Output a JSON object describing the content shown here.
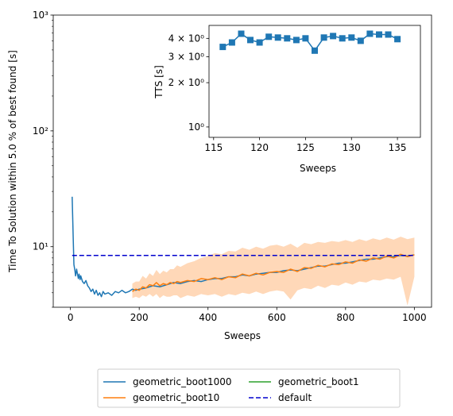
{
  "chart_data": [
    {
      "type": "line",
      "xlabel": "Sweeps",
      "ylabel": "Time To Solution within 5.0 % of best found [s]",
      "xlim": [
        -50,
        1050
      ],
      "ylim": [
        3.0,
        1000
      ],
      "yscale": "log",
      "x_ticks": [
        0,
        200,
        400,
        600,
        800,
        1000
      ],
      "x_tick_labels": [
        "0",
        "200",
        "400",
        "600",
        "800",
        "1000"
      ],
      "y_ticks": [
        10,
        100,
        1000
      ],
      "y_tick_labels": [
        "10¹",
        "10²",
        "10³"
      ],
      "grid": false,
      "legend": {
        "placement": "below-center",
        "columns": 2,
        "entries": [
          "geometric_boot1000",
          "geometric_boot10",
          "geometric_boot1",
          "default"
        ]
      },
      "series": [
        {
          "name": "geometric_boot1000",
          "color": "#1f77b4",
          "style": "solid",
          "x": [
            5,
            8,
            10,
            13,
            15,
            18,
            20,
            23,
            25,
            28,
            30,
            35,
            40,
            45,
            50,
            55,
            60,
            65,
            70,
            75,
            80,
            85,
            90,
            95,
            100,
            110,
            120,
            130,
            140,
            150,
            160,
            170,
            180,
            190,
            200,
            220,
            240,
            260,
            280,
            300,
            320,
            340,
            360,
            380,
            400,
            420,
            440,
            460,
            480,
            500,
            520,
            540,
            560,
            580,
            600,
            620,
            640,
            660,
            680,
            700,
            720,
            740,
            760,
            780,
            800,
            820,
            840,
            860,
            880,
            900,
            920,
            940,
            960,
            980,
            1000
          ],
          "y": [
            27,
            12,
            7,
            6.2,
            5.6,
            6.4,
            5.9,
            5.3,
            5.8,
            5.2,
            5.6,
            5.0,
            4.8,
            5.1,
            4.6,
            4.4,
            4.1,
            4.3,
            3.9,
            4.2,
            3.8,
            4.0,
            3.7,
            4.1,
            3.9,
            4.0,
            3.8,
            4.1,
            4.0,
            4.2,
            4.0,
            4.1,
            4.3,
            4.2,
            4.3,
            4.4,
            4.6,
            4.5,
            4.7,
            4.9,
            4.8,
            5.0,
            5.1,
            5.0,
            5.2,
            5.3,
            5.3,
            5.5,
            5.5,
            5.7,
            5.6,
            5.8,
            5.9,
            6.0,
            6.0,
            6.2,
            6.3,
            6.2,
            6.4,
            6.6,
            6.8,
            6.8,
            7.0,
            7.2,
            7.2,
            7.4,
            7.6,
            7.8,
            7.8,
            8.0,
            8.2,
            8.2,
            8.4,
            8.3,
            8.5
          ]
        },
        {
          "name": "geometric_boot10",
          "color": "#ff7f0e",
          "style": "solid",
          "x": [
            180,
            190,
            200,
            210,
            220,
            230,
            240,
            250,
            260,
            270,
            280,
            290,
            300,
            310,
            320,
            340,
            360,
            380,
            400,
            420,
            440,
            460,
            480,
            500,
            520,
            540,
            560,
            580,
            600,
            620,
            640,
            660,
            680,
            700,
            720,
            740,
            760,
            780,
            800,
            820,
            840,
            860,
            880,
            900,
            920,
            940,
            960,
            980,
            1000
          ],
          "y": [
            4.1,
            4.3,
            4.2,
            4.5,
            4.4,
            4.7,
            4.6,
            4.9,
            4.6,
            4.8,
            4.7,
            4.9,
            4.8,
            5.0,
            4.9,
            5.1,
            5.0,
            5.3,
            5.2,
            5.4,
            5.2,
            5.5,
            5.4,
            5.8,
            5.6,
            5.9,
            5.7,
            6.0,
            6.1,
            6.0,
            6.4,
            6.1,
            6.6,
            6.5,
            6.9,
            6.7,
            7.1,
            7.0,
            7.4,
            7.2,
            7.7,
            7.5,
            8.0,
            7.8,
            8.3,
            8.0,
            8.6,
            8.2,
            8.5
          ],
          "band_lower": [
            3.6,
            3.7,
            3.6,
            3.8,
            3.7,
            3.9,
            3.7,
            3.9,
            3.6,
            3.8,
            3.7,
            3.7,
            3.8,
            3.8,
            3.6,
            3.8,
            3.7,
            3.9,
            3.8,
            3.9,
            3.7,
            3.9,
            3.8,
            4.0,
            3.9,
            4.1,
            3.9,
            4.1,
            4.2,
            4.1,
            3.5,
            4.2,
            4.4,
            4.3,
            4.6,
            4.4,
            4.7,
            4.6,
            4.9,
            4.7,
            5.0,
            4.9,
            5.2,
            5.1,
            5.3,
            5.2,
            5.5,
            3.1,
            5.5
          ],
          "band_upper": [
            4.8,
            5.0,
            5.0,
            5.6,
            5.3,
            5.9,
            5.6,
            6.3,
            5.8,
            6.2,
            6.0,
            6.4,
            6.4,
            6.9,
            6.7,
            7.2,
            7.5,
            8.0,
            8.3,
            8.8,
            8.6,
            9.2,
            9.1,
            9.8,
            9.4,
            10.0,
            9.6,
            10.2,
            10.4,
            10.0,
            10.6,
            9.8,
            10.8,
            10.5,
            11.0,
            10.8,
            11.2,
            11.0,
            11.4,
            11.0,
            11.6,
            11.2,
            11.8,
            11.4,
            12.0,
            11.5,
            12.2,
            11.6,
            12.0
          ],
          "band_color": "#ffd8b8"
        },
        {
          "name": "geometric_boot1",
          "color": "#2ca02c",
          "style": "solid",
          "x": [],
          "y": []
        },
        {
          "name": "default",
          "color": "#0000cd",
          "style": "dashed",
          "x": [
            5,
            1000
          ],
          "y": [
            8.4,
            8.4
          ]
        }
      ]
    },
    {
      "type": "line",
      "xlabel": "Sweeps",
      "ylabel": "TTS [s]",
      "xlim": [
        114.5,
        137.5
      ],
      "ylim": [
        0.85,
        4.9
      ],
      "yscale": "log",
      "x_ticks": [
        115,
        120,
        125,
        130,
        135
      ],
      "x_tick_labels": [
        "115",
        "120",
        "125",
        "130",
        "135"
      ],
      "y_ticks": [
        1,
        2,
        3,
        4
      ],
      "y_tick_labels": [
        "10⁰",
        "2 × 10⁰",
        "3 × 10⁰",
        "4 × 10⁰"
      ],
      "grid": false,
      "markers": "square",
      "series": [
        {
          "color": "#1f77b4",
          "x": [
            116,
            117,
            118,
            119,
            120,
            121,
            122,
            123,
            124,
            125,
            126,
            127,
            128,
            129,
            130,
            131,
            132,
            133,
            134,
            135
          ],
          "y": [
            3.5,
            3.75,
            4.3,
            3.9,
            3.75,
            4.1,
            4.05,
            4.0,
            3.9,
            4.0,
            3.3,
            4.05,
            4.15,
            4.0,
            4.05,
            3.85,
            4.3,
            4.25,
            4.25,
            3.95
          ]
        }
      ]
    }
  ]
}
